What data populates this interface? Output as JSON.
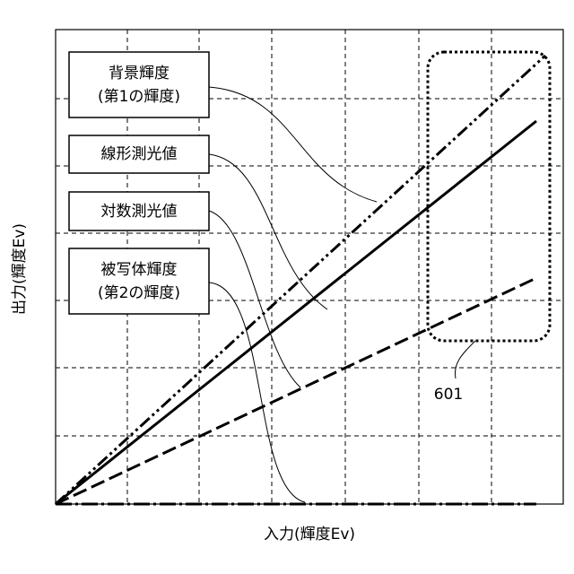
{
  "axes": {
    "x_label": "入力(輝度Ev)",
    "y_label": "出力(輝度Ev)"
  },
  "labels": [
    {
      "lines": [
        "背景輝度",
        "(第1の輝度)"
      ]
    },
    {
      "lines": [
        "線形測光値"
      ]
    },
    {
      "lines": [
        "対数測光値"
      ]
    },
    {
      "lines": [
        "被写体輝度",
        "(第2の輝度)"
      ]
    }
  ],
  "region_label": "601"
}
